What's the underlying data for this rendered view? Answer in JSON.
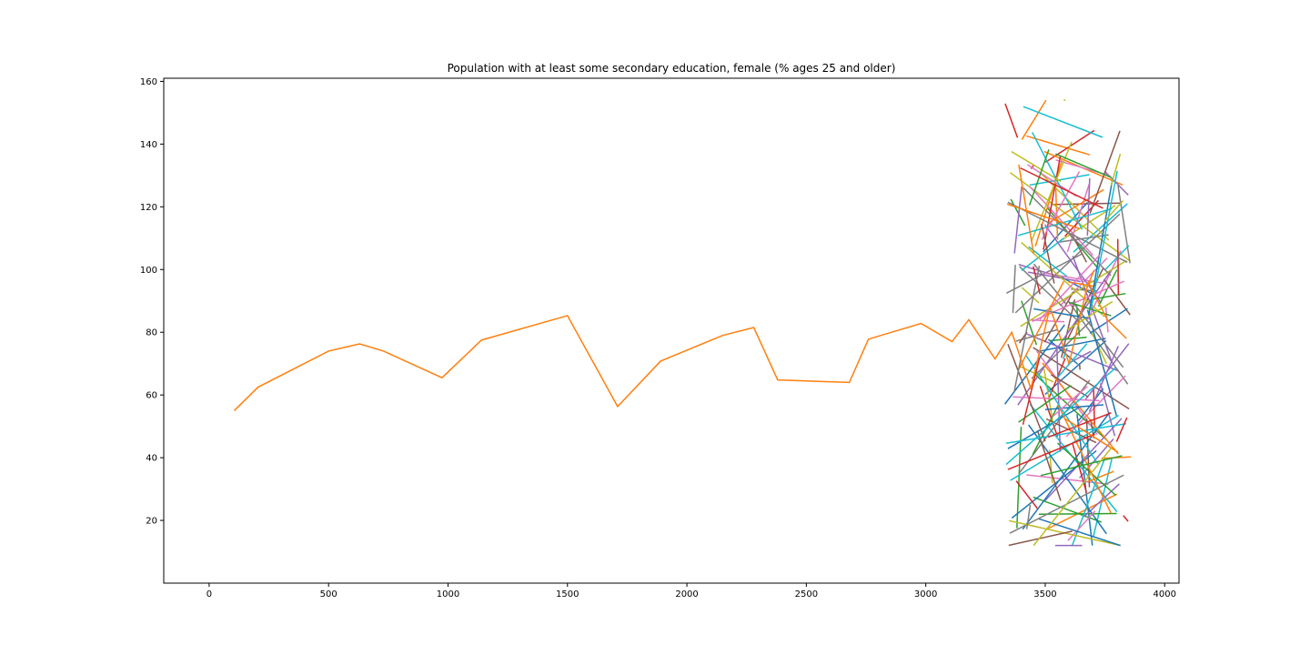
{
  "chart_data": {
    "type": "line",
    "title": "Population with at least some secondary education, female (% ages 25 and older)",
    "xlabel": "",
    "ylabel": "",
    "xlim": [
      -190,
      4060
    ],
    "ylim": [
      0,
      161
    ],
    "xticks": [
      0,
      500,
      1000,
      1500,
      2000,
      2500,
      3000,
      3500,
      4000
    ],
    "yticks": [
      20,
      40,
      60,
      80,
      100,
      120,
      140,
      160
    ],
    "grid": false,
    "legend": "none",
    "colors": [
      "#1f77b4",
      "#ff7f0e",
      "#2ca02c",
      "#d62728",
      "#9467bd",
      "#8c564b",
      "#e377c2",
      "#7f7f7f",
      "#bcbd22",
      "#17becf"
    ],
    "series": [
      {
        "color": "#ff7f0e",
        "x": [
          105,
          205,
          500,
          630,
          730,
          975,
          1140,
          1500,
          1710,
          1890,
          2150,
          2280,
          2380,
          2680,
          2760,
          2980,
          3110,
          3180,
          3290,
          3360,
          3440,
          3520,
          3600,
          3680,
          3760,
          3840
        ],
        "y": [
          55,
          62.5,
          74,
          76.3,
          74,
          65.5,
          77.5,
          85.3,
          56.3,
          70.8,
          79,
          81.5,
          64.8,
          64,
          77.8,
          82.8,
          77,
          84,
          71.5,
          80,
          62,
          88,
          70,
          96,
          84,
          78
        ]
      }
    ],
    "dense_cluster": {
      "x_range": [
        3330,
        3860
      ],
      "y_range": [
        12,
        154
      ],
      "line_count": 180,
      "note_visible": false
    }
  }
}
